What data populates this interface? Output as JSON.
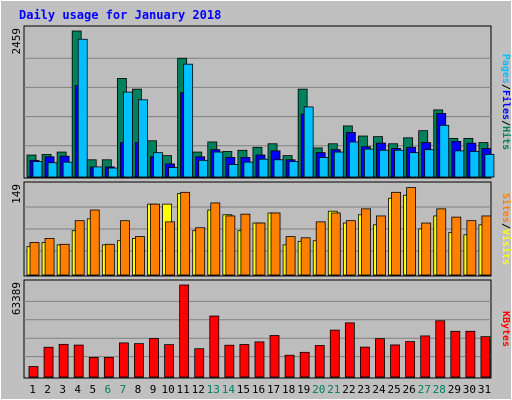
{
  "title": "Daily usage for January 2018",
  "colors": {
    "bg": "#c0c0c0",
    "panel": "#bdbdbd",
    "title": "#0000ff",
    "hits": "#00805c",
    "files": "#0000ff",
    "pages": "#00c0ff",
    "visits": "#ffff00",
    "sites": "#ff8000",
    "kbytes": "#ff0000",
    "weekend_day": "#00805c",
    "weekday": "#000000"
  },
  "chart_data": [
    {
      "type": "bar",
      "name": "hits-files-pages",
      "ymax_label": "2459",
      "legend": [
        "Pages",
        "/",
        "Files",
        "/",
        "Hits"
      ],
      "ylim": [
        0,
        2459
      ],
      "categories": [
        "1",
        "2",
        "3",
        "4",
        "5",
        "6",
        "7",
        "8",
        "9",
        "10",
        "11",
        "12",
        "13",
        "14",
        "15",
        "16",
        "17",
        "18",
        "19",
        "20",
        "21",
        "22",
        "23",
        "24",
        "25",
        "26",
        "27",
        "28",
        "29",
        "30",
        "31"
      ],
      "series": [
        {
          "name": "Hits",
          "values": [
            370,
            380,
            420,
            2459,
            290,
            290,
            1660,
            1480,
            610,
            360,
            2000,
            420,
            590,
            430,
            450,
            500,
            560,
            360,
            1480,
            490,
            560,
            860,
            690,
            680,
            560,
            660,
            780,
            1130,
            650,
            650,
            580
          ]
        },
        {
          "name": "Files",
          "values": [
            280,
            340,
            350,
            1540,
            170,
            170,
            580,
            580,
            340,
            220,
            1420,
            340,
            460,
            330,
            330,
            370,
            440,
            290,
            1060,
            410,
            460,
            750,
            510,
            570,
            480,
            500,
            580,
            1070,
            600,
            570,
            480
          ]
        },
        {
          "name": "Pages",
          "values": [
            260,
            240,
            250,
            2320,
            170,
            150,
            1430,
            1300,
            410,
            160,
            1900,
            280,
            420,
            210,
            250,
            300,
            290,
            260,
            1180,
            330,
            420,
            590,
            470,
            450,
            450,
            410,
            460,
            870,
            440,
            430,
            380
          ]
        }
      ]
    },
    {
      "type": "bar",
      "name": "visits-sites",
      "ymax_label": "149",
      "legend": [
        "Sites",
        "/",
        "Visits"
      ],
      "ylim": [
        0,
        149
      ],
      "categories": [
        "1",
        "2",
        "3",
        "4",
        "5",
        "6",
        "7",
        "8",
        "9",
        "10",
        "11",
        "12",
        "13",
        "14",
        "15",
        "16",
        "17",
        "18",
        "19",
        "20",
        "21",
        "22",
        "23",
        "24",
        "25",
        "26",
        "27",
        "28",
        "29",
        "30",
        "31"
      ],
      "series": [
        {
          "name": "Visits",
          "values": [
            48,
            55,
            51,
            75,
            95,
            51,
            58,
            62,
            120,
            120,
            138,
            75,
            110,
            102,
            75,
            88,
            105,
            51,
            57,
            58,
            108,
            88,
            102,
            85,
            130,
            135,
            78,
            100,
            72,
            68,
            85
          ]
        },
        {
          "name": "Sites",
          "values": [
            55,
            62,
            52,
            92,
            110,
            52,
            92,
            65,
            120,
            90,
            140,
            80,
            122,
            100,
            103,
            88,
            105,
            65,
            63,
            90,
            105,
            92,
            112,
            100,
            140,
            148,
            88,
            112,
            98,
            92,
            100
          ]
        }
      ]
    },
    {
      "type": "bar",
      "name": "kbytes",
      "ymax_label": "63389",
      "legend": [
        "KBytes"
      ],
      "ylim": [
        0,
        63389
      ],
      "categories": [
        "1",
        "2",
        "3",
        "4",
        "5",
        "6",
        "7",
        "8",
        "9",
        "10",
        "11",
        "12",
        "13",
        "14",
        "15",
        "16",
        "17",
        "18",
        "19",
        "20",
        "21",
        "22",
        "23",
        "24",
        "25",
        "26",
        "27",
        "28",
        "29",
        "30",
        "31"
      ],
      "series": [
        {
          "name": "KBytes",
          "values": [
            7200,
            20500,
            22500,
            22000,
            13500,
            13500,
            23500,
            23000,
            26500,
            22300,
            63389,
            19500,
            42000,
            21900,
            22400,
            24200,
            28600,
            15000,
            17000,
            21700,
            32300,
            37300,
            20600,
            26400,
            22100,
            24400,
            28300,
            38700,
            31500,
            31500,
            27800
          ]
        }
      ]
    }
  ],
  "days": [
    "1",
    "2",
    "3",
    "4",
    "5",
    "6",
    "7",
    "8",
    "9",
    "10",
    "11",
    "12",
    "13",
    "14",
    "15",
    "16",
    "17",
    "18",
    "19",
    "20",
    "21",
    "22",
    "23",
    "24",
    "25",
    "26",
    "27",
    "28",
    "29",
    "30",
    "31"
  ],
  "weekend_days": [
    6,
    7,
    13,
    14,
    20,
    21,
    27,
    28
  ]
}
